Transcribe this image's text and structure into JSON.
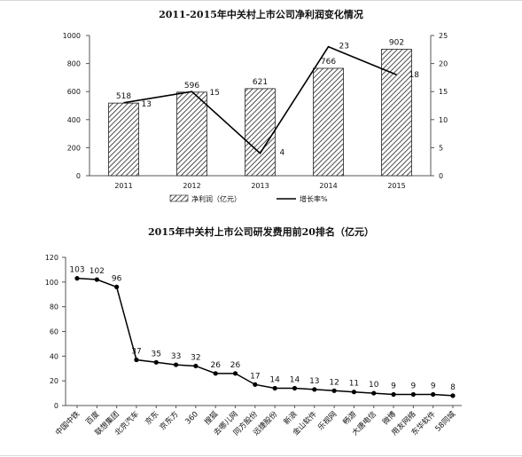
{
  "chart_data": [
    {
      "type": "bar",
      "title": "2011-2015年中关村上市公司净利润变化情况",
      "categories": [
        "2011",
        "2012",
        "2013",
        "2014",
        "2015"
      ],
      "series": [
        {
          "name": "净利润（亿元）",
          "type": "bar",
          "axis": "left",
          "values": [
            518,
            596,
            621,
            766,
            902
          ]
        },
        {
          "name": "增长率%",
          "type": "line",
          "axis": "right",
          "values": [
            13,
            15,
            4,
            23,
            18
          ]
        }
      ],
      "ylim": [
        0,
        1000
      ],
      "yticks": [
        0,
        200,
        400,
        600,
        800,
        1000
      ],
      "y2lim": [
        0,
        25
      ],
      "y2ticks": [
        0,
        5,
        10,
        15,
        20,
        25
      ],
      "legend_position": "bottom",
      "grid": false
    },
    {
      "type": "line",
      "title": "2015年中关村上市公司研发费用前20排名（亿元）",
      "categories": [
        "中国中铁",
        "百度",
        "联想集团",
        "北京汽车",
        "京东",
        "京东方",
        "360",
        "搜狐",
        "去哪儿网",
        "同方股份",
        "远捷股份",
        "新浪",
        "金山软件",
        "乐视网",
        "畅游",
        "大唐电信",
        "微博",
        "用友网络",
        "东华软件",
        "58同城"
      ],
      "values": [
        103,
        102,
        96,
        37,
        35,
        33,
        32,
        26,
        26,
        17,
        14,
        14,
        13,
        12,
        11,
        10,
        9,
        9,
        9,
        8
      ],
      "ylim": [
        0,
        120
      ],
      "yticks": [
        0,
        20,
        40,
        60,
        80,
        100,
        120
      ],
      "grid": false,
      "markers": true
    }
  ],
  "colors": {
    "line": "#000000",
    "bar_hatch": "#000000"
  }
}
